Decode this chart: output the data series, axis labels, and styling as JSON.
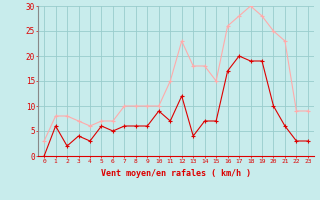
{
  "hours": [
    0,
    1,
    2,
    3,
    4,
    5,
    6,
    7,
    8,
    9,
    10,
    11,
    12,
    13,
    14,
    15,
    16,
    17,
    18,
    19,
    20,
    21,
    22,
    23
  ],
  "vent_moyen": [
    0,
    6,
    2,
    4,
    3,
    6,
    5,
    6,
    6,
    6,
    9,
    7,
    12,
    4,
    7,
    7,
    17,
    20,
    19,
    19,
    10,
    6,
    3,
    3
  ],
  "rafales": [
    3,
    8,
    8,
    7,
    6,
    7,
    7,
    10,
    10,
    10,
    10,
    15,
    23,
    18,
    18,
    15,
    26,
    28,
    30,
    28,
    25,
    23,
    9,
    9
  ],
  "line_color_moyen": "#dd0000",
  "line_color_rafales": "#ffaaaa",
  "bg_color": "#c8ecec",
  "grid_color": "#99cccc",
  "xlabel": "Vent moyen/en rafales ( km/h )",
  "xlabel_color": "#dd0000",
  "tick_color": "#dd0000",
  "ylim": [
    0,
    30
  ],
  "yticks": [
    0,
    5,
    10,
    15,
    20,
    25,
    30
  ],
  "xtick_labels": [
    "0",
    "1",
    "2",
    "3",
    "4",
    "5",
    "6",
    "7",
    "8",
    "9",
    "10",
    "11",
    "12",
    "13",
    "14",
    "15",
    "16",
    "17",
    "18",
    "19",
    "20",
    "21",
    "22",
    "23"
  ]
}
